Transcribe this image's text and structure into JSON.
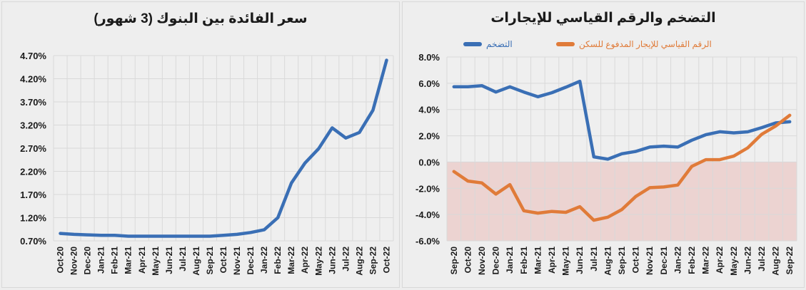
{
  "chart_data": [
    {
      "type": "line",
      "title": "سعر الفائدة بين البنوك (3 شهور)",
      "xlabel": "",
      "ylabel": "",
      "ylim": [
        0.7,
        4.7
      ],
      "yticks": [
        "4.70%",
        "4.20%",
        "3.70%",
        "3.20%",
        "2.70%",
        "2.20%",
        "1.70%",
        "1.20%",
        "0.70%"
      ],
      "ytick_values": [
        4.7,
        4.2,
        3.7,
        3.2,
        2.7,
        2.2,
        1.7,
        1.2,
        0.7
      ],
      "grid": true,
      "legend_position": "none",
      "categories": [
        "Oct-20",
        "Nov-20",
        "Dec-20",
        "Jan-21",
        "Feb-21",
        "Mar-21",
        "Apr-21",
        "May-21",
        "Jun-21",
        "Jul-21",
        "Aug-21",
        "Sep-21",
        "Oct-21",
        "Nov-21",
        "Dec-21",
        "Jan-22",
        "Feb-22",
        "Mar-22",
        "Apr-22",
        "May-22",
        "Jun-22",
        "Jul-22",
        "Aug-22",
        "Sep-22",
        "Oct-22"
      ],
      "series": [
        {
          "name": "سعر الفائدة بين البنوك (3 شهور)",
          "color": "#3a6fb5",
          "values": [
            0.86,
            0.84,
            0.83,
            0.82,
            0.82,
            0.8,
            0.8,
            0.8,
            0.8,
            0.8,
            0.8,
            0.8,
            0.82,
            0.84,
            0.88,
            0.94,
            1.2,
            1.95,
            2.38,
            2.69,
            3.14,
            2.92,
            3.04,
            3.52,
            4.6
          ]
        }
      ]
    },
    {
      "type": "line",
      "title": "التضخم والرقم القياسي للإيجارات",
      "xlabel": "",
      "ylabel": "",
      "ylim": [
        -6,
        8
      ],
      "yticks": [
        "8.0%",
        "6.0%",
        "4.0%",
        "2.0%",
        "0.0%",
        "-2.0%",
        "-4.0%",
        "-6.0%"
      ],
      "ytick_values": [
        8,
        6,
        4,
        2,
        0,
        -2,
        -4,
        -6
      ],
      "grid": true,
      "legend_position": "top",
      "negative_region_shaded": true,
      "negative_region_color": "#ecd3d1",
      "categories": [
        "Sep-20",
        "Oct-20",
        "Nov-20",
        "Dec-20",
        "Jan-21",
        "Feb-21",
        "Mar-21",
        "Apr-21",
        "May-21",
        "Jun-21",
        "Jul-21",
        "Aug-21",
        "Sep-21",
        "Oct-21",
        "Nov-21",
        "Dec-21",
        "Jan-22",
        "Feb-22",
        "Mar-22",
        "Apr-22",
        "May-22",
        "Jun-22",
        "Jul-22",
        "Aug-22",
        "Sep-22"
      ],
      "series": [
        {
          "name": "التضخم",
          "color": "#3a6fb5",
          "values": [
            5.73,
            5.73,
            5.82,
            5.33,
            5.73,
            5.33,
            4.97,
            5.28,
            5.7,
            6.15,
            0.4,
            0.22,
            0.63,
            0.81,
            1.14,
            1.21,
            1.14,
            1.66,
            2.08,
            2.31,
            2.22,
            2.3,
            2.62,
            2.98,
            3.07
          ]
        },
        {
          "name": "الرقم القياسي للإيجار المدفوع للسكن",
          "color": "#e07b39",
          "values": [
            -0.72,
            -1.45,
            -1.59,
            -2.44,
            -1.72,
            -3.71,
            -3.89,
            -3.76,
            -3.83,
            -3.4,
            -4.43,
            -4.2,
            -3.62,
            -2.62,
            -1.95,
            -1.9,
            -1.75,
            -0.33,
            0.18,
            0.18,
            0.45,
            1.08,
            2.12,
            2.75,
            3.56
          ]
        }
      ]
    }
  ],
  "left_panel": {
    "title": "سعر الفائدة بين البنوك (3 شهور)"
  },
  "right_panel": {
    "title": "التضخم والرقم القياسي للإيجارات",
    "legend": {
      "inflation_label": "التضخم",
      "rent_label": "الرقم القياسي للإيجار المدفوع للسكن",
      "inflation_color": "#3a6fb5",
      "rent_color": "#e07b39"
    }
  }
}
